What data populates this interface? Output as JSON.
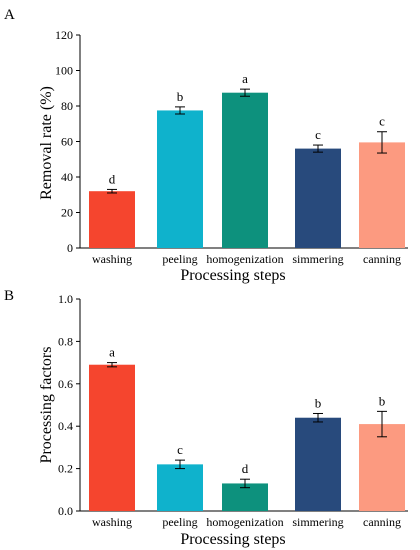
{
  "chart_data": [
    {
      "panel": "A",
      "type": "bar",
      "categories": [
        "washing",
        "peeling",
        "homogenization",
        "simmering",
        "canning"
      ],
      "values": [
        32,
        77.5,
        87.5,
        56,
        59.5
      ],
      "errors": [
        1,
        2,
        2,
        2,
        6
      ],
      "significance": [
        "d",
        "b",
        "a",
        "c",
        "c"
      ],
      "colors": [
        "#f5452e",
        "#0fb2cc",
        "#0d917d",
        "#284a7c",
        "#fc9a80"
      ],
      "xlabel": "Processing steps",
      "ylabel": "Removal rate (%)",
      "ylim": [
        0,
        120
      ],
      "yticks": [
        "0",
        "20",
        "40",
        "60",
        "80",
        "100",
        "120"
      ],
      "grid": false
    },
    {
      "panel": "B",
      "type": "bar",
      "categories": [
        "washing",
        "peeling",
        "homogenization",
        "simmering",
        "canning"
      ],
      "values": [
        0.69,
        0.22,
        0.13,
        0.44,
        0.41
      ],
      "errors": [
        0.01,
        0.02,
        0.02,
        0.02,
        0.06
      ],
      "significance": [
        "a",
        "c",
        "d",
        "b",
        "b"
      ],
      "colors": [
        "#f5452e",
        "#0fb2cc",
        "#0d917d",
        "#284a7c",
        "#fc9a80"
      ],
      "xlabel": "Processing steps",
      "ylabel": "Processing factors",
      "ylim": [
        0,
        1.0
      ],
      "yticks": [
        "0.0",
        "0.2",
        "0.4",
        "0.6",
        "0.8",
        "1.0"
      ],
      "grid": false
    }
  ]
}
